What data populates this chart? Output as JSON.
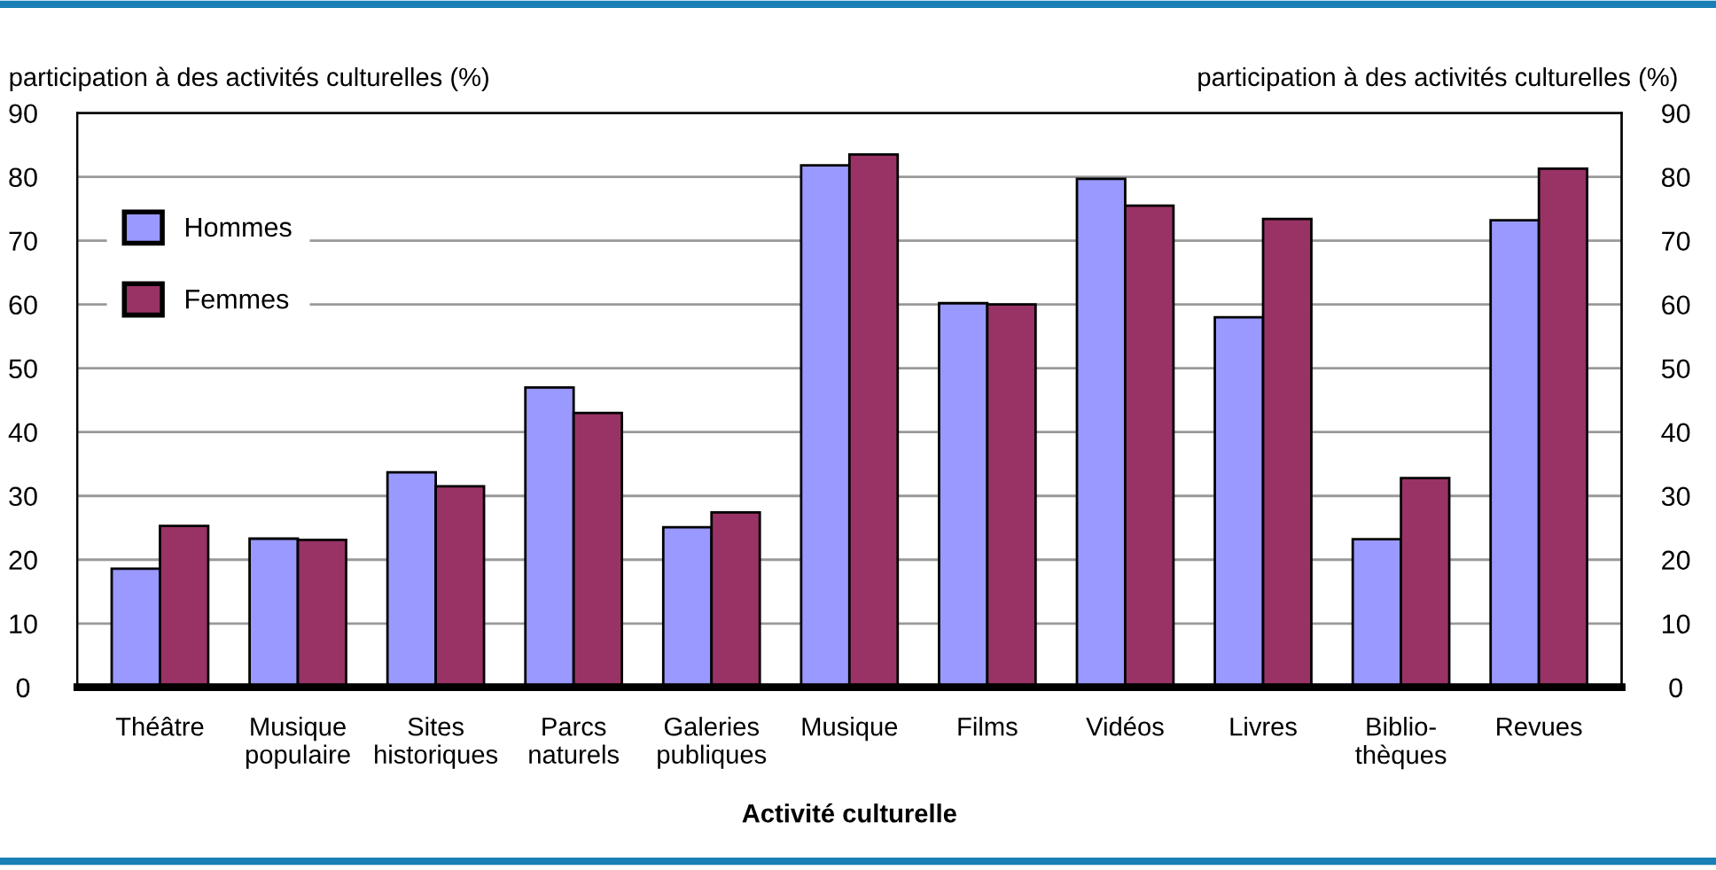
{
  "chart_data": {
    "type": "bar",
    "xlabel": "Activité culturelle",
    "ylabel": "participation à des activités culturelles (%)",
    "y2label": "participation à des activités culturelles (%)",
    "categories": [
      "Théâtre",
      "Musique\npopulaire",
      "Sites\nhistoriques",
      "Parcs\nnaturels",
      "Galeries\npubliques",
      "Musique",
      "Films",
      "Vidéos",
      "Livres",
      "Biblio-\nthèques",
      "Revues"
    ],
    "series": [
      {
        "name": "Hommes",
        "color": "#9999ff",
        "values": [
          18.6,
          23.3,
          33.7,
          47.0,
          25.1,
          81.8,
          60.2,
          79.7,
          58.0,
          23.2,
          73.2
        ]
      },
      {
        "name": "Femmes",
        "color": "#993366",
        "values": [
          25.3,
          23.1,
          31.5,
          43.0,
          27.4,
          83.5,
          60.0,
          75.5,
          73.4,
          32.8,
          81.3
        ]
      }
    ],
    "ylim": [
      0,
      90
    ],
    "yticks": [
      0,
      10,
      20,
      30,
      40,
      50,
      60,
      70,
      80,
      90
    ],
    "y2lim": [
      0,
      90
    ],
    "y2ticks": [
      0,
      10,
      20,
      30,
      40,
      50,
      60,
      70,
      80,
      90
    ],
    "grid": "y",
    "legend": "top left"
  }
}
